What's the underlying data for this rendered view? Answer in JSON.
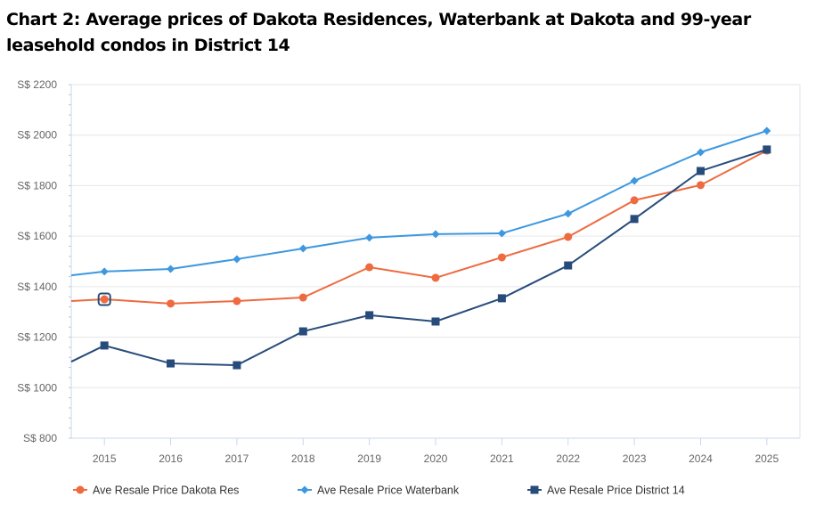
{
  "chart_data": {
    "type": "line",
    "title": "Chart 2: Average prices of Dakota Residences, Waterbank at Dakota and 99-year leasehold condos in District 14",
    "xlabel": "",
    "ylabel": "",
    "x": [
      2014.5,
      2015,
      2016,
      2017,
      2018,
      2019,
      2020,
      2021,
      2022,
      2023,
      2024,
      2025
    ],
    "xlim": [
      2014.5,
      2025.5
    ],
    "x_ticks": [
      "2015",
      "2016",
      "2017",
      "2018",
      "2019",
      "2020",
      "2021",
      "2022",
      "2023",
      "2024",
      "2025"
    ],
    "ylim": [
      800,
      2200
    ],
    "y_ticks": [
      "S$ 800",
      "S$ 1000",
      "S$ 1200",
      "S$ 1400",
      "S$ 1600",
      "S$ 1800",
      "S$ 2000",
      "S$ 2200"
    ],
    "y_tick_values": [
      800,
      1000,
      1200,
      1400,
      1600,
      1800,
      2000,
      2200
    ],
    "grid": true,
    "legend_position": "bottom",
    "series": [
      {
        "name": "Ave Resale Price Dakota Res",
        "color": "#ee6a3f",
        "marker": "circle",
        "values": [
          1343,
          1350,
          1333,
          1343,
          1357,
          1477,
          1435,
          1516,
          1597,
          1742,
          1802,
          1939
        ]
      },
      {
        "name": "Ave Resale Price Waterbank",
        "color": "#3d98e0",
        "marker": "diamond",
        "values": [
          1445,
          1460,
          1470,
          1509,
          1551,
          1594,
          1608,
          1611,
          1689,
          1819,
          1932,
          2017
        ]
      },
      {
        "name": "Ave Resale Price District 14",
        "color": "#274b7a",
        "marker": "square",
        "values": [
          1103,
          1167,
          1096,
          1089,
          1223,
          1287,
          1262,
          1354,
          1484,
          1668,
          1858,
          1943
        ]
      }
    ],
    "highlighted_point": {
      "series": 0,
      "x": 2015
    }
  }
}
